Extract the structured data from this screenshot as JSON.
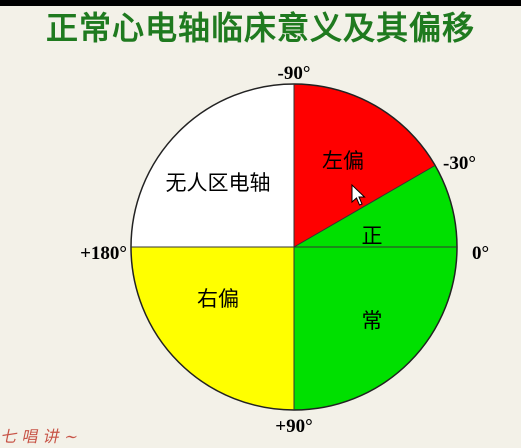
{
  "title": "正常心电轴临床意义及其偏移",
  "axis_labels": {
    "top": "-90°",
    "upper_right": "-30°",
    "left": "+180°",
    "right": "0°",
    "bottom": "+90°"
  },
  "regions": {
    "no_mans_land": "无人区电轴",
    "left_deviation": "左偏",
    "right_deviation": "右偏",
    "normal_part1": "正",
    "normal_part2": "常"
  },
  "colors": {
    "no_mans_land": "#ffffff",
    "left_deviation": "#ff0000",
    "right_deviation": "#ffff00",
    "normal": "#00e000",
    "title": "#1f7a1f"
  },
  "watermark_text": "七　唱　讲"
}
